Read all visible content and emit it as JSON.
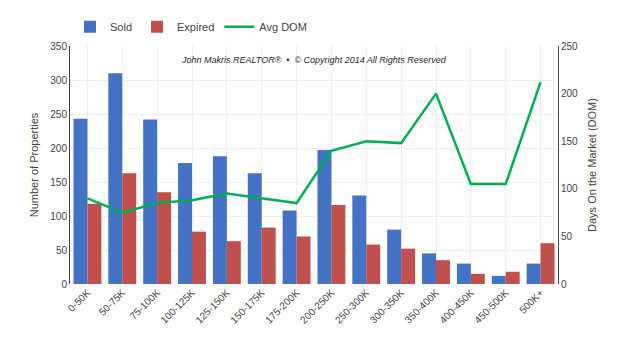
{
  "chart_data": {
    "type": "bar",
    "categories": [
      "0-50K",
      "50-75K",
      "75-100K",
      "100-125K",
      "125-150K",
      "150-175K",
      "175-200K",
      "200-250K",
      "250-300K",
      "300-350K",
      "350-400K",
      "400-450K",
      "450-500K",
      "500K+"
    ],
    "series": [
      {
        "name": "Sold",
        "color": "#4472c4",
        "values": [
          243,
          310,
          242,
          178,
          188,
          163,
          108,
          197,
          130,
          80,
          45,
          30,
          12,
          30
        ]
      },
      {
        "name": "Expired",
        "color": "#c0504d",
        "values": [
          118,
          163,
          135,
          77,
          63,
          83,
          70,
          116,
          58,
          52,
          35,
          15,
          18,
          60
        ]
      },
      {
        "name": "Avg DOM",
        "type": "line",
        "axis": "y2",
        "color": "#00b050",
        "values": [
          90,
          75,
          85,
          88,
          95,
          90,
          85,
          140,
          150,
          148,
          200,
          105,
          105,
          212
        ]
      }
    ],
    "ylabel": "Number of Properties",
    "y2label": "Days On the Market (DOM)",
    "ylim": [
      0,
      350
    ],
    "yticks": [
      0,
      50,
      100,
      150,
      200,
      250,
      300,
      350
    ],
    "y2lim": [
      0,
      250
    ],
    "y2ticks": [
      0,
      50,
      100,
      150,
      200,
      250
    ],
    "annotation": "John Makris REALTOR®  •  © Copyright 2014 All Rights Reserved",
    "grid": true,
    "legend": "upper left"
  }
}
